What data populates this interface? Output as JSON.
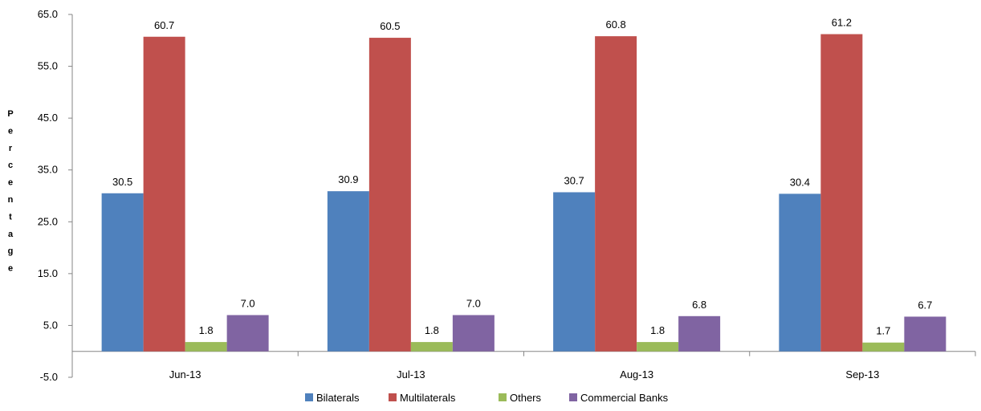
{
  "chart_data": {
    "type": "bar",
    "title": "",
    "xlabel": "",
    "ylabel": "Percentage",
    "ylim": [
      -5,
      65
    ],
    "yticks": [
      -5.0,
      5.0,
      15.0,
      25.0,
      35.0,
      45.0,
      55.0,
      65.0
    ],
    "ytick_labels": [
      "-5.0",
      "5.0",
      "15.0",
      "25.0",
      "35.0",
      "45.0",
      "55.0",
      "65.0"
    ],
    "categories": [
      "Jun-13",
      "Jul-13",
      "Aug-13",
      "Sep-13"
    ],
    "series": [
      {
        "name": "Bilaterals",
        "color": "#4f81bd",
        "values": [
          30.5,
          30.9,
          30.7,
          30.4
        ],
        "labels": [
          "30.5",
          "30.9",
          "30.7",
          "30.4"
        ]
      },
      {
        "name": "Multilaterals",
        "color": "#c0504d",
        "values": [
          60.7,
          60.5,
          60.8,
          61.2
        ],
        "labels": [
          "60.7",
          "60.5",
          "60.8",
          "61.2"
        ]
      },
      {
        "name": "Others",
        "color": "#9bbb59",
        "values": [
          1.8,
          1.8,
          1.8,
          1.7
        ],
        "labels": [
          "1.8",
          "1.8",
          "1.8",
          "1.7"
        ]
      },
      {
        "name": "Commercial Banks",
        "color": "#8064a2",
        "values": [
          7.0,
          7.0,
          6.8,
          6.7
        ],
        "labels": [
          "7.0",
          "7.0",
          "6.8",
          "6.7"
        ]
      }
    ],
    "legend_position": "bottom",
    "grid": false
  }
}
